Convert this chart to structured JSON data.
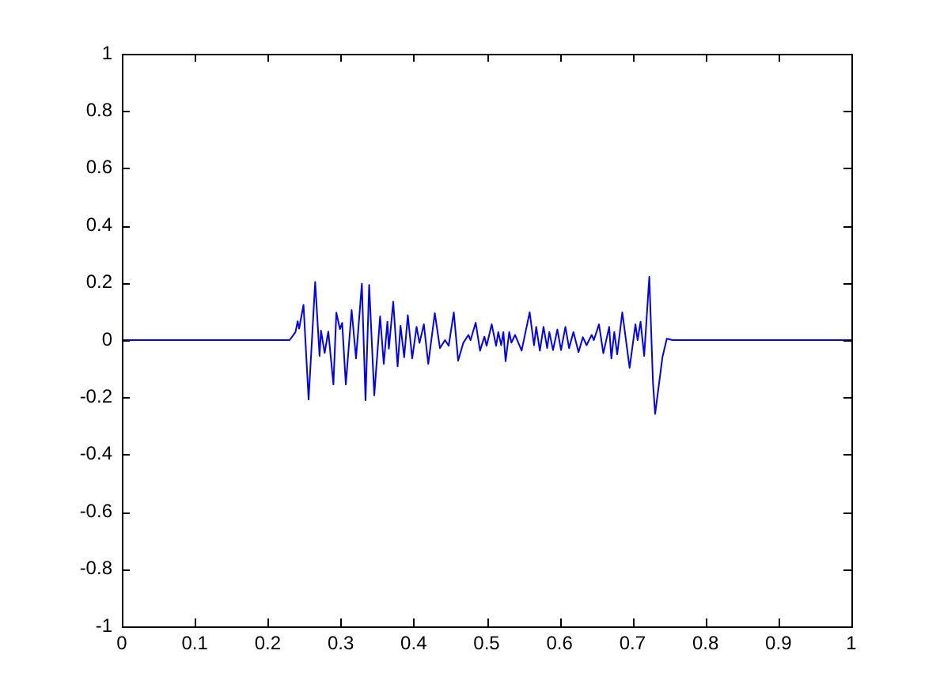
{
  "chart_data": {
    "type": "line",
    "x": [
      0,
      0.23,
      0.238,
      0.241,
      0.243,
      0.249,
      0.256,
      0.265,
      0.271,
      0.273,
      0.278,
      0.283,
      0.29,
      0.294,
      0.299,
      0.302,
      0.307,
      0.315,
      0.321,
      0.329,
      0.334,
      0.339,
      0.346,
      0.354,
      0.359,
      0.364,
      0.366,
      0.372,
      0.378,
      0.382,
      0.387,
      0.392,
      0.398,
      0.404,
      0.408,
      0.414,
      0.42,
      0.429,
      0.436,
      0.443,
      0.448,
      0.455,
      0.461,
      0.468,
      0.475,
      0.478,
      0.485,
      0.491,
      0.497,
      0.5,
      0.507,
      0.513,
      0.516,
      0.52,
      0.523,
      0.526,
      0.531,
      0.534,
      0.539,
      0.548,
      0.559,
      0.565,
      0.568,
      0.573,
      0.578,
      0.583,
      0.586,
      0.591,
      0.597,
      0.602,
      0.608,
      0.613,
      0.619,
      0.626,
      0.632,
      0.637,
      0.644,
      0.647,
      0.654,
      0.66,
      0.668,
      0.671,
      0.675,
      0.679,
      0.686,
      0.696,
      0.704,
      0.707,
      0.711,
      0.716,
      0.723,
      0.728,
      0.731,
      0.741,
      0.747,
      0.755,
      1
    ],
    "values": [
      0,
      0,
      0.028,
      0.066,
      0.04,
      0.123,
      -0.208,
      0.203,
      -0.055,
      0.033,
      -0.045,
      0.03,
      -0.155,
      0.096,
      0.038,
      0.06,
      -0.155,
      0.105,
      -0.064,
      0.197,
      -0.21,
      0.193,
      -0.193,
      0.083,
      -0.083,
      0.064,
      -0.03,
      0.134,
      -0.092,
      0.05,
      -0.06,
      0.087,
      -0.064,
      0.046,
      -0.01,
      0.055,
      -0.083,
      0.094,
      -0.028,
      0,
      -0.02,
      0.097,
      -0.072,
      -0.01,
      0.018,
      0,
      0.061,
      -0.037,
      0.012,
      -0.02,
      0.055,
      -0.02,
      0.028,
      -0.018,
      0.028,
      -0.074,
      0.028,
      -0.009,
      0.018,
      -0.037,
      0.097,
      -0.018,
      0.046,
      -0.037,
      0.046,
      -0.028,
      0.028,
      -0.035,
      0.037,
      -0.035,
      0.046,
      -0.028,
      0.028,
      -0.042,
      0.01,
      -0.018,
      0.018,
      0,
      0.055,
      -0.046,
      0.046,
      -0.064,
      0.028,
      -0.05,
      0.097,
      -0.097,
      0.055,
      0,
      0.064,
      -0.055,
      0.221,
      -0.147,
      -0.258,
      -0.06,
      0.005,
      0,
      0
    ],
    "color": "#0000ff",
    "xlim": [
      0,
      1
    ],
    "ylim": [
      -1,
      1
    ],
    "xticks": [
      0,
      0.1,
      0.2,
      0.3,
      0.4,
      0.5,
      0.6,
      0.7,
      0.8,
      0.9,
      1
    ],
    "yticks": [
      -1,
      -0.8,
      -0.6,
      -0.4,
      -0.2,
      0,
      0.2,
      0.4,
      0.6,
      0.8,
      1
    ]
  }
}
